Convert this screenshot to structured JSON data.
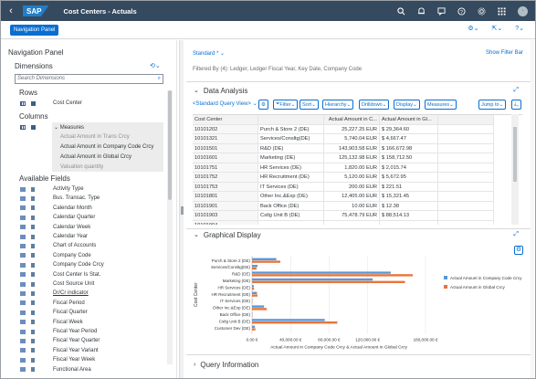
{
  "shell": {
    "logo": "SAP",
    "title": "Cost Centers - Actuals",
    "icons": [
      "search-icon",
      "notification-icon",
      "feedback-icon",
      "help-icon",
      "settings-icon",
      "apps-icon"
    ],
    "avatar_initials": "·"
  },
  "toolbar": {
    "nav_panel_label": "Navigation Panel",
    "right_icons": [
      "settings-dropdown-icon",
      "share-dropdown-icon",
      "help-dropdown-icon"
    ]
  },
  "nav": {
    "title": "Navigation Panel",
    "dimensions_title": "Dimensions",
    "search_placeholder": "Search Dimensions",
    "rows_title": "Rows",
    "rows": [
      "Cost Center"
    ],
    "columns_title": "Columns",
    "measures_header": "Measures",
    "measures": [
      {
        "label": "Actual Amount in Trans Crcy",
        "active": false
      },
      {
        "label": "Actual Amount in Company Code Crcy",
        "active": true
      },
      {
        "label": "Actual Amount in Global Crcy",
        "active": true
      },
      {
        "label": "Valuation quantity",
        "active": false
      }
    ],
    "available_title": "Available Fields",
    "fields": [
      "Activity Type",
      "Bus. Transac. Type",
      "Calendar Month",
      "Calendar Quarter",
      "Calendar Week",
      "Calendar Year",
      "Chart of Accounts",
      "Company Code",
      "Company Code Crcy",
      "Cost Center Is Stat.",
      "Cost Source Unit",
      "Dr/Cr indicator",
      "Fiscal Period",
      "Fiscal Quarter",
      "Fiscal Week",
      "Fiscal Year Period",
      "Fiscal Year Quarter",
      "Fiscal Year Variant",
      "Fiscal Year Week",
      "Functional Area"
    ]
  },
  "main": {
    "variant": "Standard *",
    "show_filter_bar": "Show Filter Bar",
    "filtered_by": "Filtered By (4): Ledger, Ledger Fiscal Year, Key Date, Company Code",
    "data_analysis_title": "Data Analysis",
    "query_view": "<Standard Query View>",
    "buttons": [
      "Filter",
      "Sort",
      "Hierarchy",
      "Drilldown",
      "Display",
      "Measures"
    ],
    "jump_to": "Jump to",
    "table": {
      "headers": [
        "Cost Center",
        "",
        "Actual Amount in C...",
        "Actual Amount in Gl...",
        ""
      ],
      "rows": [
        [
          "10101202",
          "Purch & Store 2 (DE)",
          "25,227.25 EUR",
          "$ 29,364.60",
          ""
        ],
        [
          "10101321",
          "Services/Consltg(DE)",
          "5,740.04 EUR",
          "$ 4,667.47",
          ""
        ],
        [
          "10101501",
          "R&D (DE)",
          "143,903.58 EUR",
          "$ 166,672.98",
          ""
        ],
        [
          "10101601",
          "Marketing (DE)",
          "125,132.98 EUR",
          "$ 158,712.50",
          ""
        ],
        [
          "10101751",
          "HR Services (DE)",
          "1,820.00 EUR",
          "$ 2,015.74",
          ""
        ],
        [
          "10101752",
          "HR Recruitment (DE)",
          "5,120.00 EUR",
          "$ 5,672.95",
          ""
        ],
        [
          "10101753",
          "IT Services (DE)",
          "200.00 EUR",
          "$ 221.51",
          ""
        ],
        [
          "10101801",
          "Other Inc.&Exp (DE)",
          "12,405.00 EUR",
          "$ 15,321.45",
          ""
        ],
        [
          "10101901",
          "Back Office (DE)",
          "10.00 EUR",
          "$ 12.38",
          ""
        ],
        [
          "10101903",
          "Cstlg Unit B (DE)",
          "75,478.79 EUR",
          "$ 88,514.13",
          ""
        ],
        [
          "10101904",
          "",
          "",
          "",
          ""
        ]
      ]
    },
    "graphical_title": "Graphical Display",
    "query_info_title": "Query Information"
  },
  "chart_data": {
    "type": "bar",
    "orientation": "horizontal",
    "categories": [
      "Purch & Store 2 (DE)",
      "Services/Consltg(DE)",
      "R&D (DE)",
      "Marketing (DE)",
      "HR Services (DE)",
      "HR Recruitment (DE)",
      "IT Services (DE)",
      "Other Inc.&Exp (DE)",
      "Back Office (DE)",
      "Cstlg Unit B (DE)",
      "Customer Dev (DE)"
    ],
    "series": [
      {
        "name": "Actual Amount in Company Code Crcy",
        "color": "#5899da",
        "values": [
          25227.25,
          5740.04,
          143903.58,
          125132.98,
          1820.0,
          5120.0,
          200.0,
          12405.0,
          10.0,
          75478.79,
          3000
        ]
      },
      {
        "name": "Actual Amount in Global Crcy",
        "color": "#e8743b",
        "values": [
          29364.6,
          4667.47,
          166672.98,
          158712.5,
          2015.74,
          5672.95,
          221.51,
          15321.45,
          12.38,
          88514.13,
          3500
        ]
      }
    ],
    "ticks": [
      "0.00 €",
      "40,000.00 €",
      "80,000.00 €",
      "120,000.00 €",
      "180,000.00 €"
    ],
    "tick_values": [
      0,
      40000,
      80000,
      120000,
      180000
    ],
    "xlim": [
      0,
      180000
    ],
    "xlabel": "Actual Amount in Company Code Crcy & Actual Amount in Global Crcy",
    "ylabel": "Cost Center",
    "legend_position": "right"
  }
}
